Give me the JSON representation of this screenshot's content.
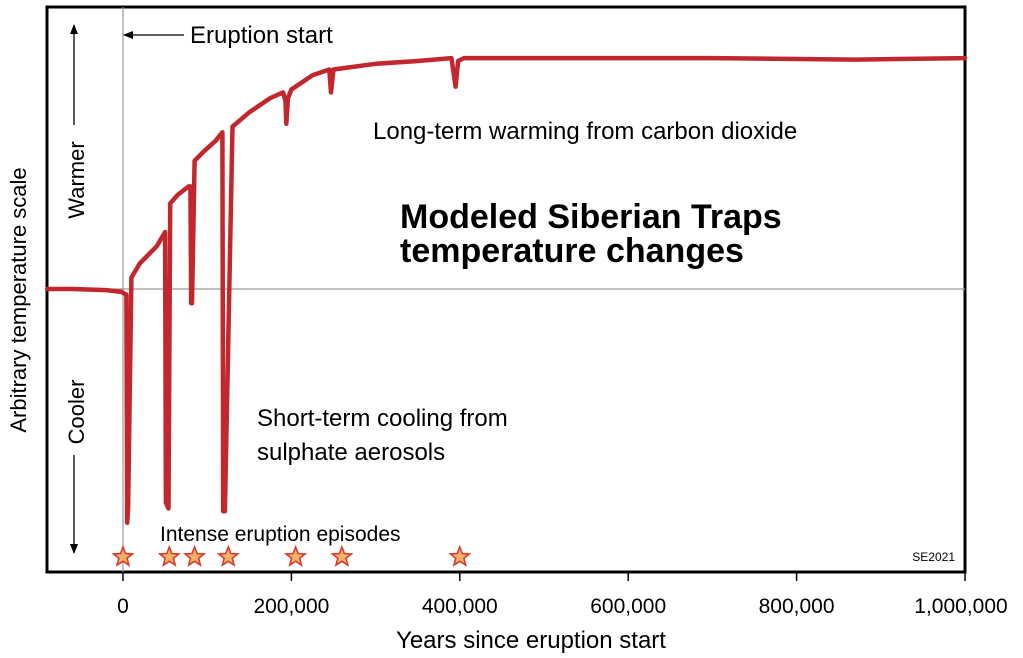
{
  "chart_data": {
    "type": "line",
    "title": "Modeled Siberian Traps temperature changes",
    "xlabel": "Years since eruption start",
    "ylabel": "Arbitrary temperature scale",
    "xlim": [
      -90000,
      1000000
    ],
    "ylim": [
      -1,
      1
    ],
    "x_ticks": [
      0,
      200000,
      400000,
      600000,
      800000,
      1000000
    ],
    "x_tick_labels": [
      "0",
      "200,000",
      "400,000",
      "600,000",
      "800,000",
      "1,000,000"
    ],
    "grid": false,
    "baseline_y": 0,
    "series": [
      {
        "color": "#c1272d",
        "points": [
          [
            -90000,
            0.0
          ],
          [
            -60000,
            0.0
          ],
          [
            -20000,
            -0.004
          ],
          [
            -2000,
            -0.01
          ],
          [
            4000,
            -0.02
          ],
          [
            5000,
            -0.82
          ],
          [
            6000,
            -0.77
          ],
          [
            10000,
            0.04
          ],
          [
            20000,
            0.09
          ],
          [
            40000,
            0.15
          ],
          [
            50000,
            0.2
          ],
          [
            51000,
            -0.75
          ],
          [
            54000,
            -0.77
          ],
          [
            56000,
            0.3
          ],
          [
            65000,
            0.33
          ],
          [
            78000,
            0.36
          ],
          [
            80000,
            0.36
          ],
          [
            81000,
            -0.05
          ],
          [
            82000,
            -0.05
          ],
          [
            85000,
            0.45
          ],
          [
            95000,
            0.48
          ],
          [
            110000,
            0.52
          ],
          [
            118000,
            0.55
          ],
          [
            119000,
            -0.78
          ],
          [
            121000,
            -0.78
          ],
          [
            130000,
            0.57
          ],
          [
            150000,
            0.62
          ],
          [
            175000,
            0.67
          ],
          [
            190000,
            0.69
          ],
          [
            193000,
            0.66
          ],
          [
            194000,
            0.58
          ],
          [
            196000,
            0.67
          ],
          [
            200000,
            0.7
          ],
          [
            225000,
            0.75
          ],
          [
            245000,
            0.77
          ],
          [
            247000,
            0.69
          ],
          [
            250000,
            0.77
          ],
          [
            300000,
            0.79
          ],
          [
            350000,
            0.8
          ],
          [
            390000,
            0.81
          ],
          [
            395000,
            0.71
          ],
          [
            398000,
            0.8
          ],
          [
            405000,
            0.81
          ],
          [
            500000,
            0.81
          ],
          [
            700000,
            0.81
          ],
          [
            870000,
            0.805
          ],
          [
            1000000,
            0.81
          ]
        ]
      }
    ],
    "eruption_episodes": [
      0,
      55000,
      85000,
      125000,
      205000,
      260000,
      400000
    ],
    "annotations": {
      "eruption_start": "Eruption start",
      "warming": "Long-term warming from carbon dioxide",
      "cooling_line1": "Short-term cooling from",
      "cooling_line2": "sulphate aerosols",
      "episodes": "Intense eruption episodes",
      "warmer": "Warmer",
      "cooler": "Cooler",
      "credit": "SE2021"
    },
    "title_lines": [
      "Modeled Siberian Traps",
      "temperature changes"
    ]
  }
}
